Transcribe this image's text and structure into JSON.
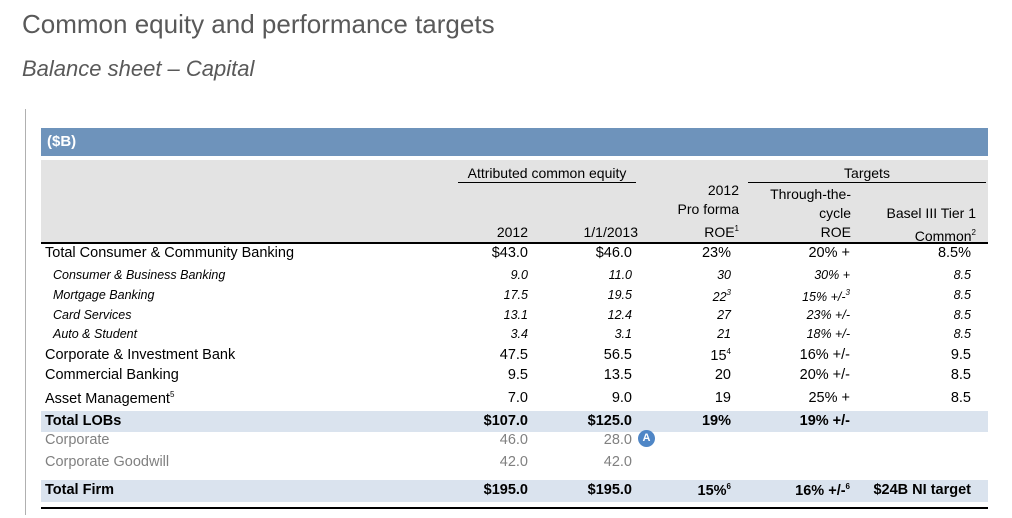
{
  "title": "Common equity and performance targets",
  "subtitle": "Balance sheet – Capital",
  "banner": "($B)",
  "header": {
    "group_equity": "Attributed common equity",
    "group_targets": "Targets",
    "col_2012": "2012",
    "col_2013": "1/1/2013",
    "proforma_l1": "2012",
    "proforma_l2": "Pro forma",
    "proforma_l3": "ROE",
    "proforma_sup": "1",
    "ttc_l1": "Through-the-",
    "ttc_l2": "cycle",
    "ttc_l3": "ROE",
    "basel_l1": "Basel III Tier 1",
    "basel_l2": "Common",
    "basel_sup": "2"
  },
  "rows": [
    {
      "label": "Total Consumer & Community Banking",
      "v2012": "$43.0",
      "v2013": "$46.0",
      "proforma": "23%",
      "proforma_sup": "",
      "ttc": "20% +",
      "ttc_sup": "",
      "basel": "8.5%"
    },
    {
      "label": "Consumer & Business Banking",
      "v2012": "9.0",
      "v2013": "11.0",
      "proforma": "30",
      "proforma_sup": "",
      "ttc": "30% +",
      "ttc_sup": "",
      "basel": "8.5"
    },
    {
      "label": "Mortgage Banking",
      "v2012": "17.5",
      "v2013": "19.5",
      "proforma": "22",
      "proforma_sup": "3",
      "ttc": "15% +/-",
      "ttc_sup": "3",
      "basel": "8.5"
    },
    {
      "label": "Card Services",
      "v2012": "13.1",
      "v2013": "12.4",
      "proforma": "27",
      "proforma_sup": "",
      "ttc": "23% +/-",
      "ttc_sup": "",
      "basel": "8.5"
    },
    {
      "label": "Auto & Student",
      "v2012": "3.4",
      "v2013": "3.1",
      "proforma": "21",
      "proforma_sup": "",
      "ttc": "18% +/-",
      "ttc_sup": "",
      "basel": "8.5"
    },
    {
      "label": "Corporate & Investment Bank",
      "v2012": "47.5",
      "v2013": "56.5",
      "proforma": "15",
      "proforma_sup": "4",
      "ttc": "16% +/-",
      "ttc_sup": "",
      "basel": "9.5"
    },
    {
      "label": "Commercial Banking",
      "v2012": "9.5",
      "v2013": "13.5",
      "proforma": "20",
      "proforma_sup": "",
      "ttc": "20% +/-",
      "ttc_sup": "",
      "basel": "8.5"
    },
    {
      "label": "Asset Management",
      "label_sup": "5",
      "v2012": "7.0",
      "v2013": "9.0",
      "proforma": "19",
      "proforma_sup": "",
      "ttc": "25% +",
      "ttc_sup": "",
      "basel": "8.5"
    },
    {
      "label": "Total LOBs",
      "v2012": "$107.0",
      "v2013": "$125.0",
      "proforma": "19%",
      "proforma_sup": "",
      "ttc": "19% +/-",
      "ttc_sup": "",
      "basel": ""
    },
    {
      "label": "Corporate",
      "v2012": "46.0",
      "v2013": "28.0",
      "proforma": "",
      "proforma_sup": "",
      "ttc": "",
      "ttc_sup": "",
      "basel": ""
    },
    {
      "label": "Corporate Goodwill",
      "v2012": "42.0",
      "v2013": "42.0",
      "proforma": "",
      "proforma_sup": "",
      "ttc": "",
      "ttc_sup": "",
      "basel": ""
    },
    {
      "label": "Total Firm",
      "v2012": "$195.0",
      "v2013": "$195.0",
      "proforma": "15%",
      "proforma_sup": "6",
      "ttc": "16% +/-",
      "ttc_sup": "6",
      "basel": "$24B NI target"
    }
  ],
  "badge": "A",
  "colors": {
    "banner": "#6e93bb",
    "band": "#dae3ee",
    "header_bg": "#e3e3e3",
    "badge": "#4f86c6",
    "gray_text": "#808080"
  }
}
